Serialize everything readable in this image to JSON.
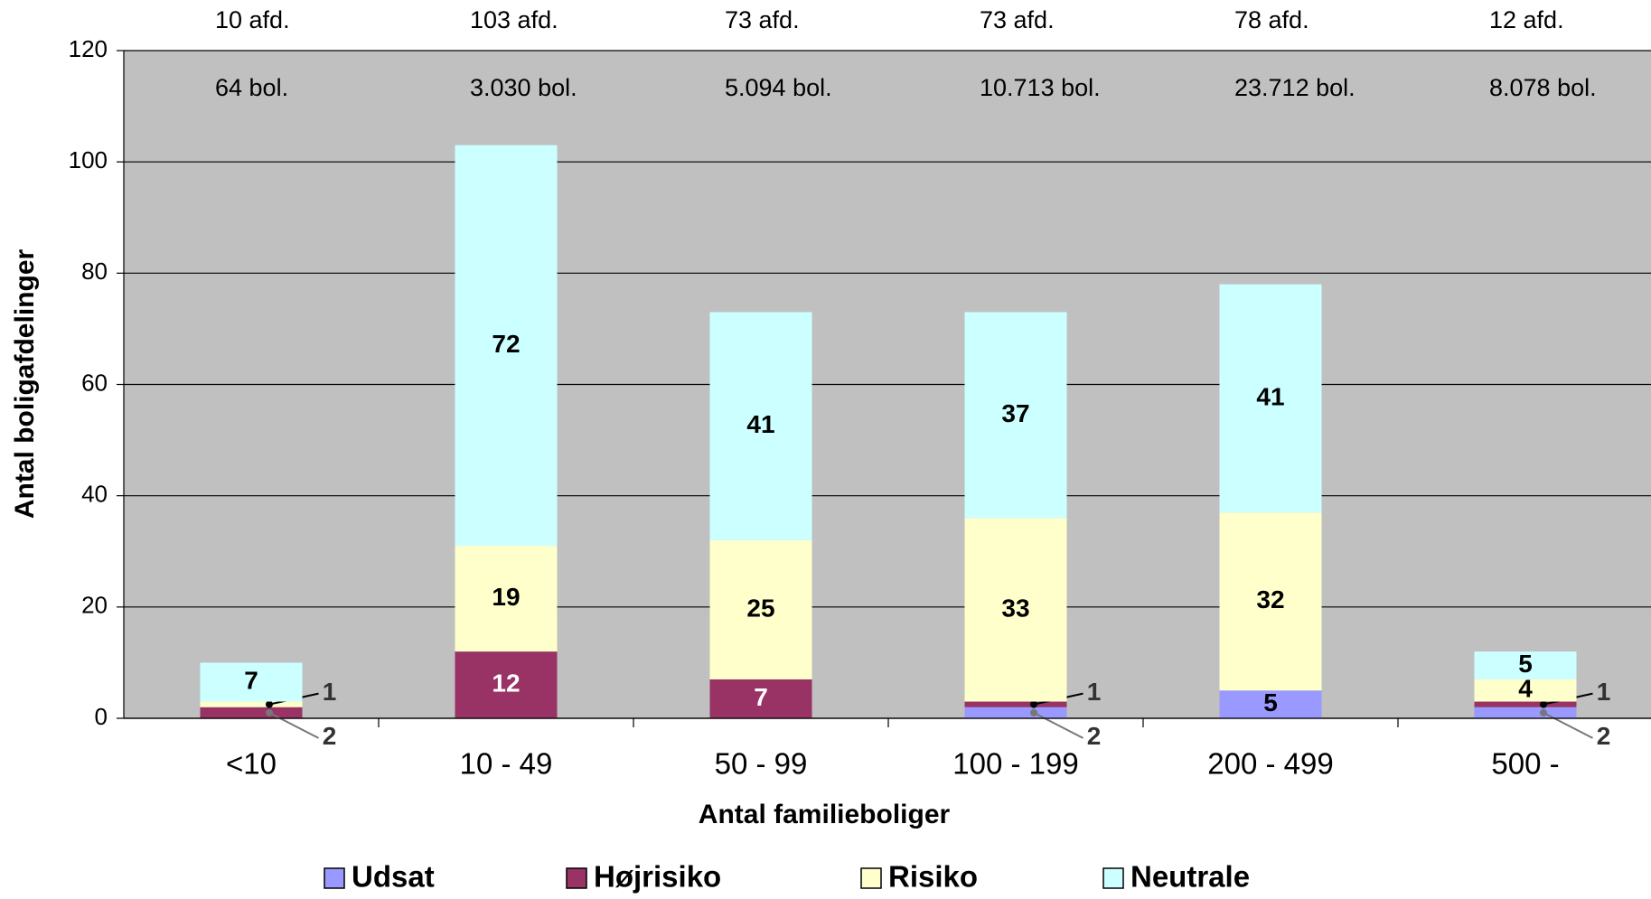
{
  "chart_data": {
    "type": "stacked-bar",
    "x_label": "Antal familieboliger",
    "y_label": "Antal boligafdelinger",
    "categories": [
      "<10",
      "10 - 49",
      "50 - 99",
      "100 - 199",
      "200 - 499",
      "500 -"
    ],
    "series": [
      {
        "name": "Udsat",
        "color": "#9999ff",
        "values": [
          0,
          0,
          0,
          2,
          5,
          2
        ]
      },
      {
        "name": "Højrisiko",
        "color": "#993366",
        "values": [
          2,
          12,
          7,
          1,
          0,
          1
        ]
      },
      {
        "name": "Risiko",
        "color": "#ffffcc",
        "values": [
          1,
          19,
          25,
          33,
          32,
          4
        ]
      },
      {
        "name": "Neutrale",
        "color": "#ccffff",
        "values": [
          7,
          72,
          41,
          37,
          41,
          5
        ]
      }
    ],
    "annotations": {
      "afd": [
        "10 afd.",
        "103 afd.",
        "73 afd.",
        "73 afd.",
        "78 afd.",
        "12 afd."
      ],
      "bol": [
        "64 bol.",
        "3.030 bol.",
        "5.094 bol.",
        "10.713 bol.",
        "23.712 bol.",
        "8.078 bol."
      ]
    },
    "ylim": [
      0,
      120
    ],
    "yticks": [
      0,
      20,
      40,
      60,
      80,
      100,
      120
    ],
    "grid": true,
    "plot_background": "#c0c0c0",
    "legend": "bottom"
  }
}
